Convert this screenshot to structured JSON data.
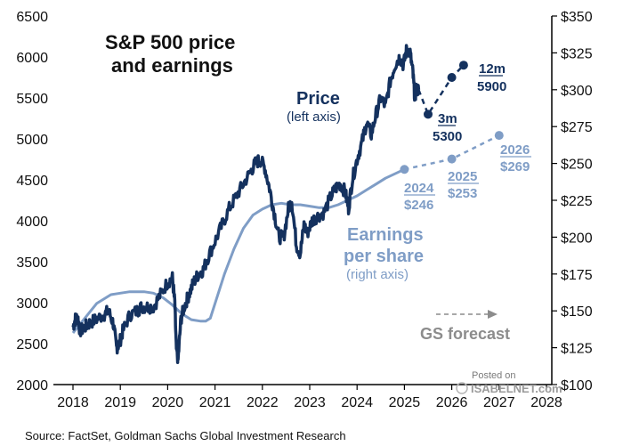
{
  "chart_data": {
    "type": "line",
    "title": [
      "S&P 500 price",
      "and earnings"
    ],
    "left_axis": {
      "ylim": [
        2000,
        6500
      ],
      "ticks": [
        "2000",
        "2500",
        "3000",
        "3500",
        "4000",
        "4500",
        "5000",
        "5500",
        "6000",
        "6500"
      ]
    },
    "right_axis": {
      "ylim": [
        100,
        350
      ],
      "ticks": [
        "$100",
        "$125",
        "$150",
        "$175",
        "$200",
        "$225",
        "$250",
        "$275",
        "$300",
        "$325",
        "$350"
      ]
    },
    "x_axis": {
      "xlim": [
        2018,
        2028
      ],
      "ticks": [
        "2018",
        "2019",
        "2020",
        "2021",
        "2022",
        "2023",
        "2024",
        "2025",
        "2026",
        "2027",
        "2028"
      ]
    },
    "series": [
      {
        "name": "Price",
        "axis": "left",
        "color": "#14315e",
        "labels": [
          "Price",
          "(left axis)"
        ],
        "x": [
          2018.0,
          2018.05,
          2018.1,
          2018.15,
          2018.25,
          2018.35,
          2018.5,
          2018.65,
          2018.75,
          2018.85,
          2018.92,
          2018.98,
          2019.05,
          2019.2,
          2019.35,
          2019.45,
          2019.55,
          2019.7,
          2019.85,
          2020.0,
          2020.1,
          2020.15,
          2020.18,
          2020.22,
          2020.28,
          2020.35,
          2020.45,
          2020.55,
          2020.65,
          2020.75,
          2020.85,
          2021.0,
          2021.15,
          2021.3,
          2021.45,
          2021.6,
          2021.75,
          2021.85,
          2021.95,
          2022.05,
          2022.15,
          2022.25,
          2022.35,
          2022.45,
          2022.55,
          2022.62,
          2022.72,
          2022.8,
          2022.88,
          2022.95,
          2023.05,
          2023.15,
          2023.3,
          2023.45,
          2023.55,
          2023.65,
          2023.75,
          2023.82,
          2023.9,
          2024.0,
          2024.1,
          2024.2,
          2024.3,
          2024.4,
          2024.5,
          2024.6,
          2024.7,
          2024.8,
          2024.9,
          2024.98,
          2025.05,
          2025.12,
          2025.18,
          2025.22,
          2025.25,
          2025.3
        ],
        "values": [
          2700,
          2800,
          2820,
          2650,
          2700,
          2750,
          2800,
          2850,
          2900,
          2750,
          2450,
          2500,
          2650,
          2850,
          2900,
          2950,
          2950,
          2950,
          3100,
          3250,
          3300,
          3000,
          2450,
          2300,
          2800,
          2950,
          3100,
          3250,
          3350,
          3400,
          3550,
          3750,
          3950,
          4150,
          4300,
          4450,
          4600,
          4700,
          4750,
          4650,
          4400,
          4100,
          3800,
          3800,
          4150,
          4250,
          3700,
          3600,
          3950,
          3850,
          4000,
          4050,
          4100,
          4300,
          4400,
          4450,
          4350,
          4150,
          4500,
          4750,
          4950,
          5200,
          5050,
          5300,
          5500,
          5400,
          5700,
          5900,
          6000,
          5900,
          6100,
          6050,
          5800,
          5500,
          5600,
          5600
        ]
      },
      {
        "name": "Price forecast",
        "axis": "left",
        "color": "#14315e",
        "dashed": true,
        "x": [
          2025.3,
          2025.5,
          2026.0,
          2026.25
        ],
        "values": [
          5600,
          5300,
          5750,
          5900
        ],
        "annotations": [
          {
            "x": 2025.5,
            "y": 5300,
            "lines": [
              "3m",
              "5300"
            ]
          },
          {
            "x": 2026.25,
            "y": 5900,
            "lines": [
              "12m",
              "5900"
            ]
          }
        ]
      },
      {
        "name": "Earnings per share",
        "axis": "right",
        "color": "#7f9dc6",
        "labels": [
          "Earnings",
          "per share",
          "(right axis)"
        ],
        "x": [
          2018.0,
          2018.2,
          2018.5,
          2018.8,
          2019.0,
          2019.2,
          2019.5,
          2019.7,
          2019.9,
          2020.1,
          2020.3,
          2020.5,
          2020.7,
          2020.8,
          2020.9,
          2021.0,
          2021.2,
          2021.4,
          2021.6,
          2021.8,
          2022.0,
          2022.2,
          2022.4,
          2022.6,
          2022.8,
          2023.0,
          2023.2,
          2023.4,
          2023.6,
          2023.8,
          2024.0,
          2024.2,
          2024.4,
          2024.6,
          2024.8,
          2025.0
        ],
        "values": [
          135,
          143,
          155,
          161,
          162,
          163,
          163,
          162,
          159,
          154,
          148,
          144,
          143,
          143,
          145,
          155,
          175,
          192,
          206,
          215,
          219,
          222,
          223,
          222,
          222,
          221,
          220,
          220,
          222,
          225,
          228,
          232,
          236,
          240,
          243,
          246
        ]
      },
      {
        "name": "EPS forecast",
        "axis": "right",
        "color": "#7f9dc6",
        "dashed": true,
        "x": [
          2025.0,
          2026.0,
          2027.0
        ],
        "values": [
          246,
          253,
          269
        ],
        "annotations": [
          {
            "x": 2025.0,
            "y": 246,
            "lines": [
              "2024",
              "$246"
            ]
          },
          {
            "x": 2026.0,
            "y": 253,
            "lines": [
              "2025",
              "$253"
            ]
          },
          {
            "x": 2027.0,
            "y": 269,
            "lines": [
              "2026",
              "$269"
            ]
          }
        ]
      }
    ],
    "legend_note": "GS forecast",
    "source": "Source: FactSet, Goldman Sachs Global Investment Research",
    "watermark": [
      "Posted on",
      "ISABELNET.com"
    ]
  }
}
